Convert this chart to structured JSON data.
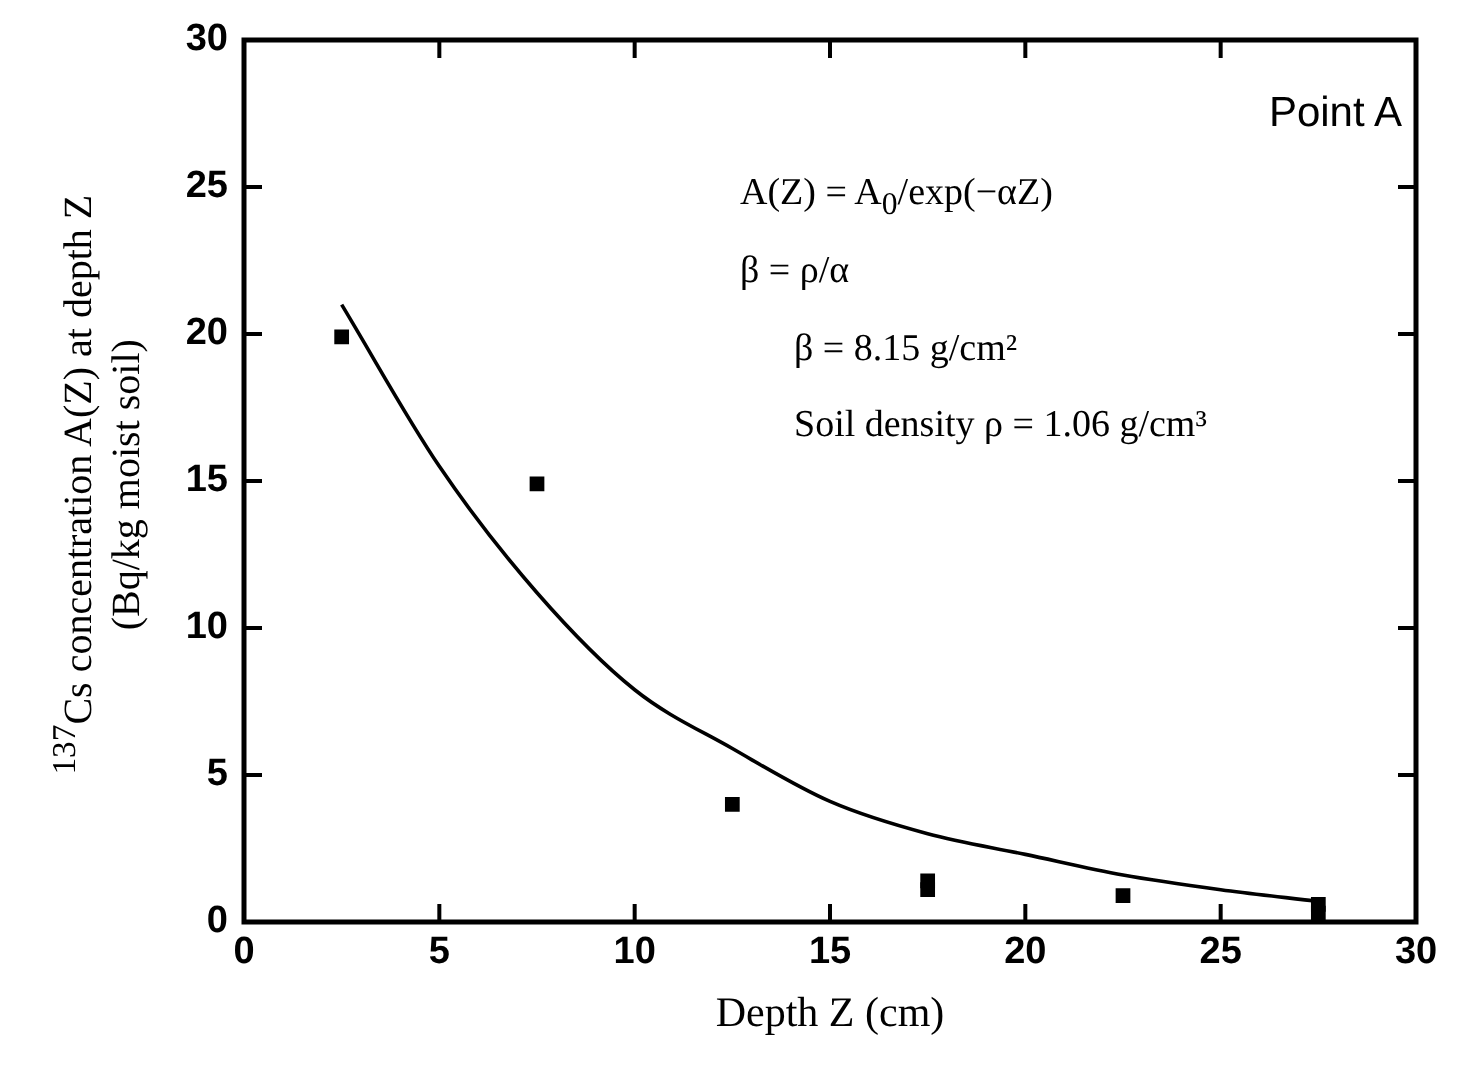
{
  "chart_data": {
    "type": "scatter",
    "xlabel": "Depth Z (cm)",
    "ylabel": "$^{137}$Cs concentration A(Z) at depth Z\n(Bq/kg moist soil)",
    "series": [
      {
        "type": "scatter",
        "color": "#000000",
        "marker": "square",
        "x": [
          2.5,
          7.5,
          12.5,
          17.5,
          17.5,
          22.5,
          27.5,
          27.5
        ],
        "values": [
          19.9,
          14.9,
          4.0,
          1.4,
          1.1,
          0.9,
          0.6,
          0.3
        ]
      },
      {
        "type": "line",
        "color": "#000000",
        "marker": "none",
        "x": [
          2.5,
          5,
          7.5,
          10,
          12.5,
          15,
          17.5,
          20,
          22.5,
          25,
          27.5
        ],
        "values": [
          21,
          15.5,
          11.2,
          7.9,
          5.9,
          4.1,
          3.0,
          2.3,
          1.6,
          1.1,
          0.7
        ]
      }
    ],
    "xlim": [
      0,
      30
    ],
    "xticks": [
      0,
      5,
      10,
      15,
      20,
      25,
      30
    ],
    "ylim": [
      0,
      30
    ],
    "yticks": [
      0,
      5,
      10,
      15,
      20,
      25,
      30
    ],
    "grid": false,
    "legend": false,
    "annotations": [
      "Point A",
      "A(Z) = A$_{0}$/exp(−αZ)",
      "β = ρ/α",
      "β = 8.15 g/cm²",
      "Soil density ρ = 1.06 g/cm³"
    ]
  }
}
